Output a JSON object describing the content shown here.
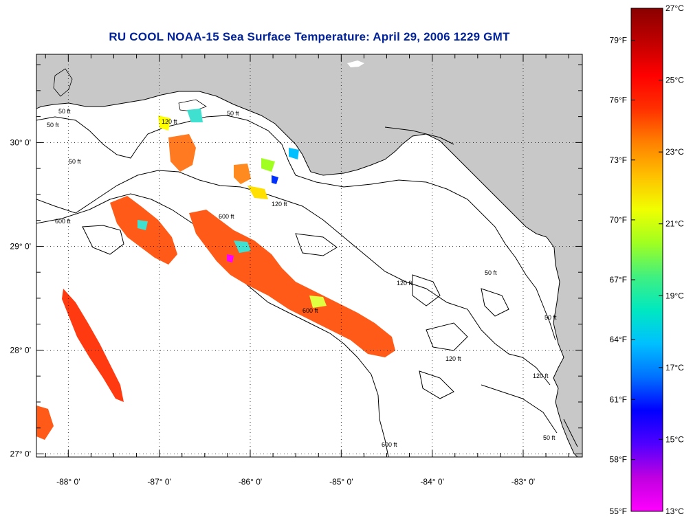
{
  "title": "RU COOL  NOAA-15  Sea Surface Temperature:  April 29, 2006 1229 GMT",
  "map": {
    "lon_labels": [
      "-88° 0'",
      "-87° 0'",
      "-86° 0'",
      "-85° 0'",
      "-84° 0'",
      "-83° 0'"
    ],
    "lon_values": [
      -88,
      -87,
      -86,
      -85,
      -84,
      -83
    ],
    "lat_labels": [
      "30° 0'",
      "29° 0'",
      "28° 0'",
      "27° 0'"
    ],
    "lat_values": [
      30,
      29,
      28,
      27
    ],
    "lon_range": [
      -88.35,
      -82.35
    ],
    "lat_range": [
      26.97,
      30.85
    ],
    "contour_labels": [
      "50 ft",
      "50 ft",
      "50 ft",
      "50 ft",
      "120 ft",
      "120 ft",
      "120 ft",
      "120 ft",
      "600 ft",
      "600 ft",
      "600 ft",
      "600 ft",
      "50 ft",
      "50 ft",
      "50 ft",
      "120 ft"
    ],
    "colors": {
      "land": "#c8c8c8",
      "water": "#ffffff",
      "grid": "#000000",
      "title": "#00229a"
    }
  },
  "colorbar": {
    "f_labels": [
      "79°F",
      "76°F",
      "73°F",
      "70°F",
      "67°F",
      "64°F",
      "61°F",
      "58°F",
      "55°F"
    ],
    "c_labels": [
      "27°C",
      "25°C",
      "23°C",
      "21°C",
      "19°C",
      "17°C",
      "15°C",
      "13°C"
    ],
    "c_values": [
      27,
      25,
      23,
      21,
      19,
      17,
      15,
      13
    ],
    "f_values": [
      79,
      76,
      73,
      70,
      67,
      64,
      61,
      58,
      55
    ],
    "range_c": [
      13,
      27
    ],
    "gradient_colors": [
      "#ff00ff",
      "#c000e0",
      "#5000ff",
      "#0000ff",
      "#0070ff",
      "#00c0ff",
      "#00e8c0",
      "#40f080",
      "#a0ff20",
      "#f0ff00",
      "#ffc000",
      "#ff8000",
      "#ff3000",
      "#ff0000",
      "#c00000",
      "#8a0000"
    ]
  }
}
